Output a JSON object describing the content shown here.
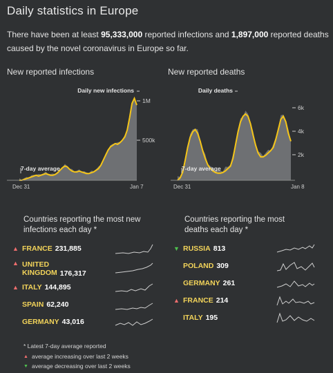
{
  "page": {
    "title": "Daily statistics in Europe",
    "summary_pre": "There have been at least ",
    "infections_total": "95,333,000",
    "summary_mid": " reported infections and ",
    "deaths_total": "1,897,000",
    "summary_post": " reported deaths caused by the novel coronavirus in Europe so far."
  },
  "infections_panel": {
    "title": "New reported infections",
    "chart_label": "Daily new infections",
    "avg_label": "7-day average",
    "x_start": "Dec 31",
    "x_end": "Jan 7",
    "y_ticks": [
      "1M",
      "500k"
    ]
  },
  "deaths_panel": {
    "title": "New reported deaths",
    "chart_label": "Daily deaths",
    "avg_label": "7-day average",
    "x_start": "Dec 31",
    "x_end": "Jan 8",
    "y_ticks": [
      "6k",
      "4k",
      "2k"
    ]
  },
  "infections_list": {
    "title_line1": "Countries reporting the most new",
    "title_line2": "infections each day *",
    "items": [
      {
        "name1": "FRANCE",
        "name2": "",
        "value": "231,885",
        "trend": "up"
      },
      {
        "name1": "UNITED",
        "name2": "KINGDOM",
        "value": "176,317",
        "trend": "up"
      },
      {
        "name1": "ITALY",
        "name2": "",
        "value": "144,895",
        "trend": "up"
      },
      {
        "name1": "SPAIN",
        "name2": "",
        "value": "62,240",
        "trend": "none"
      },
      {
        "name1": "GERMANY",
        "name2": "",
        "value": "43,016",
        "trend": "none"
      }
    ]
  },
  "deaths_list": {
    "title_line1": "Countries reporting the most",
    "title_line2": "deaths each day *",
    "items": [
      {
        "name1": "RUSSIA",
        "value": "813",
        "trend": "down"
      },
      {
        "name1": "POLAND",
        "value": "309",
        "trend": "none"
      },
      {
        "name1": "GERMANY",
        "value": "261",
        "trend": "none"
      },
      {
        "name1": "FRANCE",
        "value": "214",
        "trend": "up"
      },
      {
        "name1": "ITALY",
        "value": "195",
        "trend": "none"
      }
    ]
  },
  "footnote": {
    "note": "* Latest 7-day average reported",
    "increasing": "average increasing over last 2 weeks",
    "decreasing": "average decreasing over last 2 weeks"
  },
  "colors": {
    "background": "#2f3133",
    "accent": "#f5c518",
    "area": "#6e7073",
    "up": "#ef6e6e",
    "down": "#4fc24f"
  },
  "icons": {
    "up": "triangle-up-icon",
    "down": "triangle-down-icon"
  }
}
